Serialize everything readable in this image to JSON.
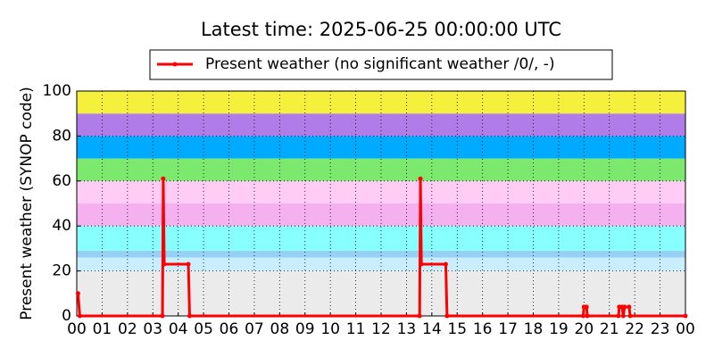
{
  "chart_data": {
    "type": "line",
    "title": "Latest time: 2025-06-25 00:00:00 UTC",
    "y_label": "Present weather (SYNOP code)",
    "series": [
      {
        "name": "Present weather (no significant weather /0/, -)",
        "color": "#ff0000",
        "x": [
          0.05,
          0.12,
          3.38,
          3.41,
          3.45,
          4.4,
          4.45,
          13.52,
          13.55,
          13.59,
          14.55,
          14.6,
          19.97,
          20.0,
          20.1,
          20.13,
          21.36,
          21.39,
          21.5,
          21.55,
          21.6,
          21.78,
          21.82,
          24
        ],
        "values": [
          10,
          0,
          0,
          61,
          23,
          23,
          0,
          0,
          61,
          23,
          23,
          0,
          0,
          4,
          4,
          0,
          0,
          4,
          4,
          0,
          4,
          4,
          0,
          0
        ]
      }
    ],
    "bands": [
      {
        "from": 0,
        "to": 20,
        "color": "#ebebeb"
      },
      {
        "from": 20,
        "to": 26,
        "color": "#c8eeff"
      },
      {
        "from": 26,
        "to": 29,
        "color": "#96d0f5"
      },
      {
        "from": 29,
        "to": 40,
        "color": "#88ffff"
      },
      {
        "from": 40,
        "to": 50,
        "color": "#f5b0f0"
      },
      {
        "from": 50,
        "to": 60,
        "color": "#ffccf5"
      },
      {
        "from": 60,
        "to": 70,
        "color": "#7de86e"
      },
      {
        "from": 70,
        "to": 80,
        "color": "#00aaff"
      },
      {
        "from": 80,
        "to": 90,
        "color": "#b07de8"
      },
      {
        "from": 90,
        "to": 100,
        "color": "#f5f03c"
      }
    ],
    "xlim": [
      0,
      24
    ],
    "xticks": [
      {
        "value": 0,
        "label": "00"
      },
      {
        "value": 1,
        "label": "01"
      },
      {
        "value": 2,
        "label": "02"
      },
      {
        "value": 3,
        "label": "03"
      },
      {
        "value": 4,
        "label": "04"
      },
      {
        "value": 5,
        "label": "05"
      },
      {
        "value": 6,
        "label": "06"
      },
      {
        "value": 7,
        "label": "07"
      },
      {
        "value": 8,
        "label": "08"
      },
      {
        "value": 9,
        "label": "09"
      },
      {
        "value": 10,
        "label": "10"
      },
      {
        "value": 11,
        "label": "11"
      },
      {
        "value": 12,
        "label": "12"
      },
      {
        "value": 13,
        "label": "13"
      },
      {
        "value": 14,
        "label": "14"
      },
      {
        "value": 15,
        "label": "15"
      },
      {
        "value": 16,
        "label": "16"
      },
      {
        "value": 17,
        "label": "17"
      },
      {
        "value": 18,
        "label": "18"
      },
      {
        "value": 19,
        "label": "19"
      },
      {
        "value": 20,
        "label": "20"
      },
      {
        "value": 21,
        "label": "21"
      },
      {
        "value": 22,
        "label": "22"
      },
      {
        "value": 23,
        "label": "23"
      },
      {
        "value": 24,
        "label": "00"
      }
    ],
    "ylim": [
      0,
      100
    ],
    "yticks": [
      0,
      20,
      40,
      60,
      80,
      100
    ],
    "grid": true
  }
}
